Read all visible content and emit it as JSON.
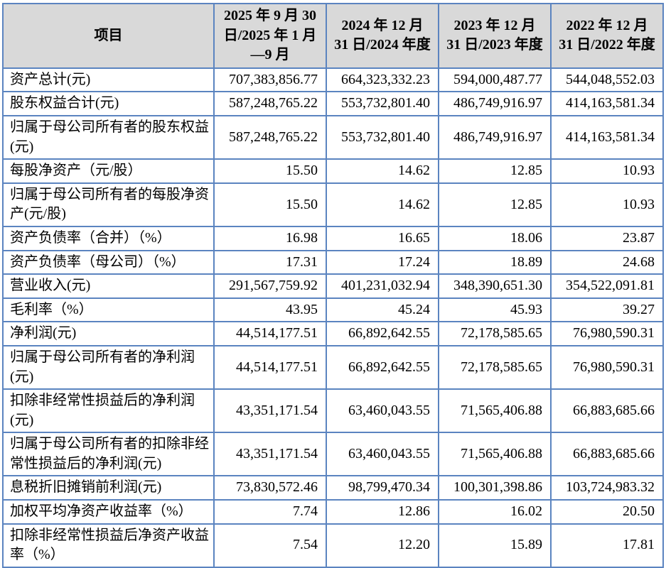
{
  "table": {
    "columns": [
      "项目",
      "2025 年 9 月 30 日/2025 年 1 月—9 月",
      "2024 年 12 月 31 日/2024 年度",
      "2023 年 12 月 31 日/2023 年度",
      "2022 年 12 月 31 日/2022 年度"
    ],
    "rows": [
      {
        "label": "资产总计(元)",
        "values": [
          "707,383,856.77",
          "664,323,332.23",
          "594,000,487.77",
          "544,048,552.03"
        ]
      },
      {
        "label": "股东权益合计(元)",
        "values": [
          "587,248,765.22",
          "553,732,801.40",
          "486,749,916.97",
          "414,163,581.34"
        ]
      },
      {
        "label": "归属于母公司所有者的股东权益(元)",
        "values": [
          "587,248,765.22",
          "553,732,801.40",
          "486,749,916.97",
          "414,163,581.34"
        ]
      },
      {
        "label": "每股净资产（元/股）",
        "values": [
          "15.50",
          "14.62",
          "12.85",
          "10.93"
        ]
      },
      {
        "label": "归属于母公司所有者的每股净资产(元/股)",
        "values": [
          "15.50",
          "14.62",
          "12.85",
          "10.93"
        ]
      },
      {
        "label": "资产负债率（合并）（%）",
        "values": [
          "16.98",
          "16.65",
          "18.06",
          "23.87"
        ]
      },
      {
        "label": "资产负债率（母公司）（%）",
        "values": [
          "17.31",
          "17.24",
          "18.89",
          "24.68"
        ]
      },
      {
        "label": "营业收入(元)",
        "values": [
          "291,567,759.92",
          "401,231,032.94",
          "348,390,651.30",
          "354,522,091.81"
        ]
      },
      {
        "label": "毛利率（%）",
        "values": [
          "43.95",
          "45.24",
          "45.93",
          "39.27"
        ]
      },
      {
        "label": "净利润(元)",
        "values": [
          "44,514,177.51",
          "66,892,642.55",
          "72,178,585.65",
          "76,980,590.31"
        ]
      },
      {
        "label": "归属于母公司所有者的净利润(元)",
        "values": [
          "44,514,177.51",
          "66,892,642.55",
          "72,178,585.65",
          "76,980,590.31"
        ]
      },
      {
        "label": "扣除非经常性损益后的净利润(元)",
        "values": [
          "43,351,171.54",
          "63,460,043.55",
          "71,565,406.88",
          "66,883,685.66"
        ]
      },
      {
        "label": "归属于母公司所有者的扣除非经常性损益后的净利润(元)",
        "values": [
          "43,351,171.54",
          "63,460,043.55",
          "71,565,406.88",
          "66,883,685.66"
        ]
      },
      {
        "label": "息税折旧摊销前利润(元)",
        "values": [
          "73,830,572.46",
          "98,799,470.34",
          "100,301,398.86",
          "103,724,983.32"
        ]
      },
      {
        "label": "加权平均净资产收益率（%）",
        "values": [
          "7.74",
          "12.86",
          "16.02",
          "20.50"
        ]
      },
      {
        "label": "扣除非经常性损益后净资产收益率（%）",
        "values": [
          "7.54",
          "12.20",
          "15.89",
          "17.81"
        ]
      }
    ]
  }
}
